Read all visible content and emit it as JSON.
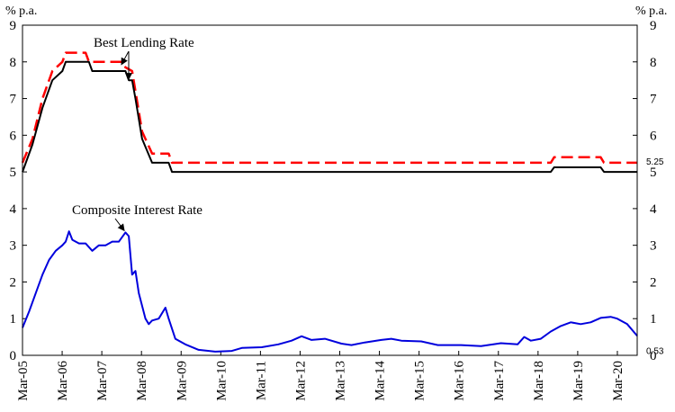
{
  "chart_data": {
    "type": "line",
    "left_unit_label": "% p.a.",
    "right_unit_label": "% p.a.",
    "ylim": [
      0,
      9
    ],
    "yticks": [
      "0",
      "1",
      "2",
      "3",
      "4",
      "5",
      "6",
      "7",
      "8",
      "9"
    ],
    "xlim": [
      "2005-03",
      "2020-08"
    ],
    "xticks": [
      "Mar-05",
      "Mar-06",
      "Mar-07",
      "Mar-08",
      "Mar-09",
      "Mar-10",
      "Mar-11",
      "Mar-12",
      "Mar-13",
      "Mar-14",
      "Mar-15",
      "Mar-16",
      "Mar-17",
      "Mar-18",
      "Mar-19",
      "Mar-20"
    ],
    "grid": false,
    "annotations": [
      {
        "text": "Best Lending Rate",
        "points_to": "2007-10"
      },
      {
        "text": "Composite Interest Rate",
        "points_to": "2007-10"
      }
    ],
    "end_labels": [
      {
        "text": "5.25",
        "value": 5.25
      },
      {
        "text": "0.53",
        "value": 0.53
      }
    ],
    "series": [
      {
        "key": "blr_upper",
        "color": "#ff0000",
        "style": "dashed",
        "points": [
          [
            "2005-03",
            5.25
          ],
          [
            "2005-06",
            5.9
          ],
          [
            "2005-09",
            7.0
          ],
          [
            "2005-12",
            7.75
          ],
          [
            "2006-03",
            8.0
          ],
          [
            "2006-04",
            8.25
          ],
          [
            "2006-10",
            8.25
          ],
          [
            "2006-11",
            8.0
          ],
          [
            "2007-09",
            8.0
          ],
          [
            "2007-10",
            7.85
          ],
          [
            "2007-12",
            7.75
          ],
          [
            "2008-01",
            7.2
          ],
          [
            "2008-03",
            6.1
          ],
          [
            "2008-06",
            5.5
          ],
          [
            "2008-11",
            5.5
          ],
          [
            "2008-12",
            5.25
          ],
          [
            "2018-06",
            5.25
          ],
          [
            "2018-07",
            5.4
          ],
          [
            "2019-09",
            5.4
          ],
          [
            "2019-10",
            5.25
          ],
          [
            "2020-08",
            5.25
          ]
        ]
      },
      {
        "key": "blr_lower",
        "color": "#000000",
        "style": "solid",
        "points": [
          [
            "2005-03",
            5.0
          ],
          [
            "2005-06",
            5.75
          ],
          [
            "2005-09",
            6.75
          ],
          [
            "2005-12",
            7.5
          ],
          [
            "2006-03",
            7.75
          ],
          [
            "2006-04",
            8.0
          ],
          [
            "2006-11",
            8.0
          ],
          [
            "2006-12",
            7.75
          ],
          [
            "2007-10",
            7.75
          ],
          [
            "2007-11",
            7.5
          ],
          [
            "2007-12",
            7.5
          ],
          [
            "2008-01",
            7.0
          ],
          [
            "2008-03",
            5.9
          ],
          [
            "2008-06",
            5.25
          ],
          [
            "2008-11",
            5.25
          ],
          [
            "2008-12",
            5.0
          ],
          [
            "2018-06",
            5.0
          ],
          [
            "2018-07",
            5.125
          ],
          [
            "2019-09",
            5.125
          ],
          [
            "2019-10",
            5.0
          ],
          [
            "2020-08",
            5.0
          ]
        ]
      },
      {
        "key": "composite",
        "color": "#0000dd",
        "style": "solid",
        "points": [
          [
            "2005-03",
            0.75
          ],
          [
            "2005-05",
            1.2
          ],
          [
            "2005-07",
            1.7
          ],
          [
            "2005-09",
            2.2
          ],
          [
            "2005-11",
            2.6
          ],
          [
            "2006-01",
            2.85
          ],
          [
            "2006-03",
            3.0
          ],
          [
            "2006-04",
            3.1
          ],
          [
            "2006-05",
            3.38
          ],
          [
            "2006-06",
            3.15
          ],
          [
            "2006-08",
            3.05
          ],
          [
            "2006-10",
            3.05
          ],
          [
            "2006-12",
            2.85
          ],
          [
            "2007-02",
            3.0
          ],
          [
            "2007-04",
            3.0
          ],
          [
            "2007-06",
            3.1
          ],
          [
            "2007-08",
            3.1
          ],
          [
            "2007-10",
            3.35
          ],
          [
            "2007-11",
            3.25
          ],
          [
            "2007-12",
            2.2
          ],
          [
            "2008-01",
            2.3
          ],
          [
            "2008-02",
            1.7
          ],
          [
            "2008-04",
            1.0
          ],
          [
            "2008-05",
            0.85
          ],
          [
            "2008-06",
            0.95
          ],
          [
            "2008-08",
            1.0
          ],
          [
            "2008-10",
            1.3
          ],
          [
            "2008-11",
            1.0
          ],
          [
            "2009-01",
            0.45
          ],
          [
            "2009-04",
            0.3
          ],
          [
            "2009-08",
            0.15
          ],
          [
            "2010-01",
            0.1
          ],
          [
            "2010-06",
            0.12
          ],
          [
            "2010-09",
            0.2
          ],
          [
            "2011-03",
            0.22
          ],
          [
            "2011-08",
            0.3
          ],
          [
            "2011-12",
            0.4
          ],
          [
            "2012-03",
            0.52
          ],
          [
            "2012-06",
            0.42
          ],
          [
            "2012-10",
            0.45
          ],
          [
            "2013-03",
            0.32
          ],
          [
            "2013-06",
            0.28
          ],
          [
            "2013-10",
            0.35
          ],
          [
            "2014-03",
            0.42
          ],
          [
            "2014-06",
            0.45
          ],
          [
            "2014-09",
            0.4
          ],
          [
            "2015-03",
            0.38
          ],
          [
            "2015-08",
            0.28
          ],
          [
            "2016-03",
            0.28
          ],
          [
            "2016-09",
            0.25
          ],
          [
            "2017-03",
            0.33
          ],
          [
            "2017-08",
            0.3
          ],
          [
            "2017-10",
            0.5
          ],
          [
            "2017-12",
            0.4
          ],
          [
            "2018-03",
            0.45
          ],
          [
            "2018-06",
            0.65
          ],
          [
            "2018-09",
            0.8
          ],
          [
            "2018-12",
            0.9
          ],
          [
            "2019-03",
            0.85
          ],
          [
            "2019-06",
            0.9
          ],
          [
            "2019-09",
            1.02
          ],
          [
            "2019-12",
            1.05
          ],
          [
            "2020-02",
            1.0
          ],
          [
            "2020-05",
            0.85
          ],
          [
            "2020-08",
            0.53
          ]
        ]
      }
    ]
  }
}
